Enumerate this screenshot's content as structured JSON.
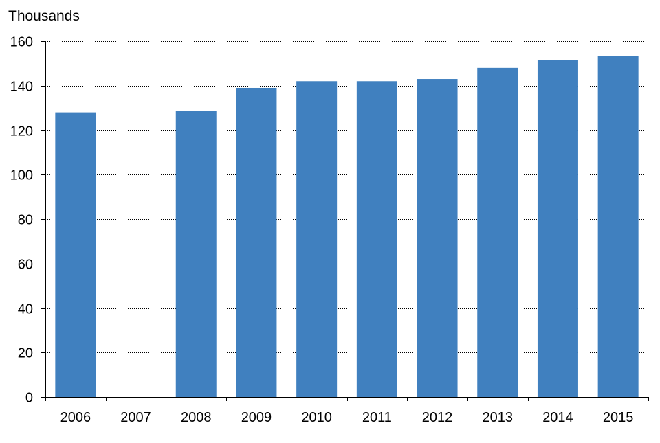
{
  "chart_data": {
    "type": "bar",
    "ylabel": "Thousands",
    "categories": [
      "2006",
      "2007",
      "2008",
      "2009",
      "2010",
      "2011",
      "2012",
      "2013",
      "2014",
      "2015"
    ],
    "values": [
      128,
      null,
      128.5,
      139,
      142,
      142,
      143,
      148,
      151.5,
      153.5
    ],
    "ylim": [
      0,
      160
    ],
    "yticks": [
      0,
      20,
      40,
      60,
      80,
      100,
      120,
      140,
      160
    ],
    "grid": true,
    "colors": {
      "bar": "#4080bf",
      "gridline": "#000000",
      "axis": "#000000"
    }
  }
}
